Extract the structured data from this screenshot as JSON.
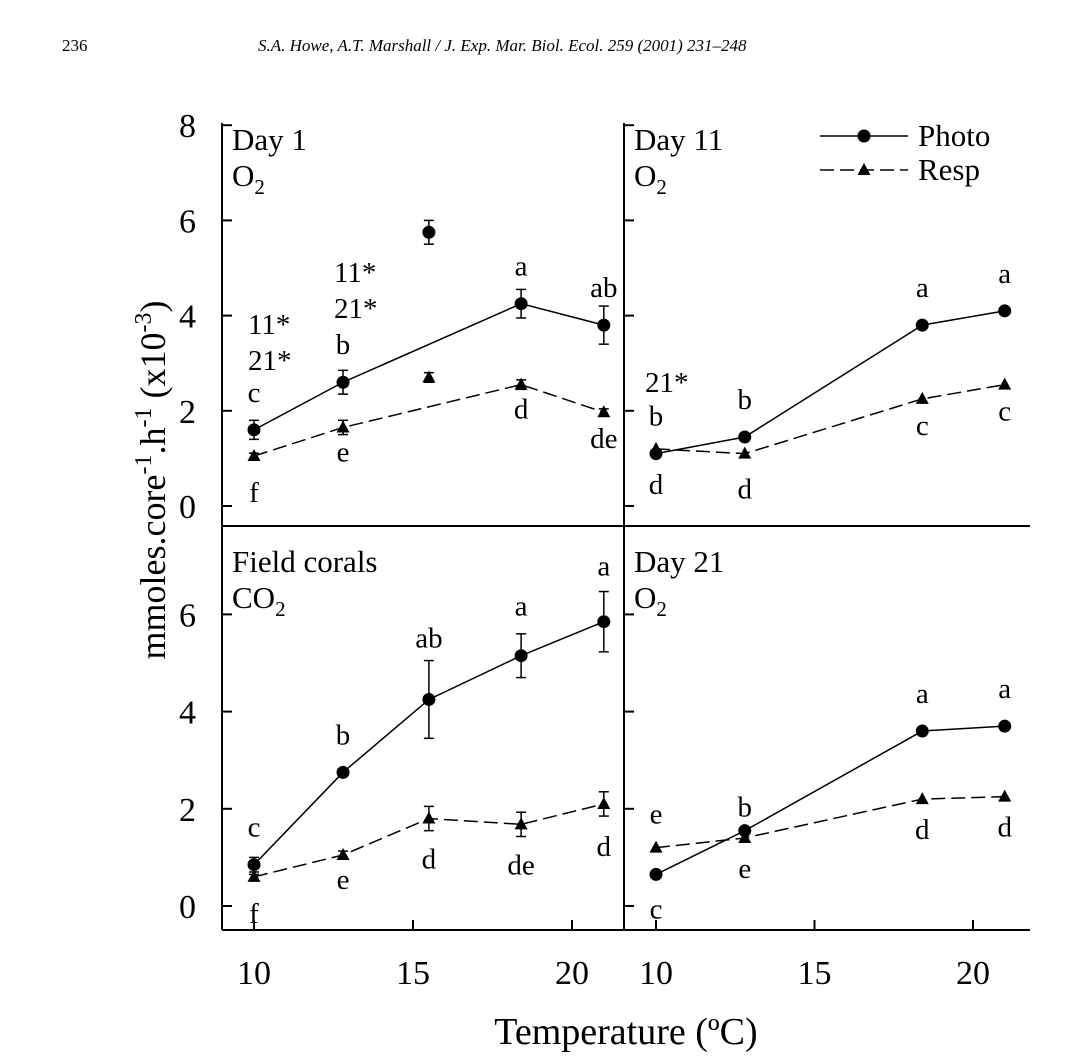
{
  "header": {
    "page_number": "236",
    "running_head": "S.A. Howe, A.T. Marshall / J. Exp. Mar. Biol. Ecol. 259 (2001) 231–248"
  },
  "chart_data": {
    "type": "line",
    "xlabel": "Temperature (ºC)",
    "ylabel_main": "mmoles.core",
    "ylabel_sup1": "-1",
    "ylabel_mid": ".h",
    "ylabel_sup2": "-1",
    "ylabel_end": " (x10",
    "ylabel_sup3": "-3",
    "ylabel_close": ")",
    "legend": [
      {
        "name": "Photo",
        "marker": "circle",
        "line": "solid"
      },
      {
        "name": "Resp",
        "marker": "triangle",
        "line": "dashed"
      }
    ],
    "xlim": [
      9,
      22
    ],
    "ylim": [
      -0.5,
      8
    ],
    "x_ticks": [
      "10",
      "15",
      "20"
    ],
    "y_ticks_top": [
      "0",
      "2",
      "4",
      "6",
      "8"
    ],
    "y_ticks_bottom": [
      "0",
      "2",
      "4",
      "6"
    ],
    "panels": [
      {
        "id": "day1",
        "title": "Day 1",
        "gas_base": "O",
        "gas_sub": "2",
        "series": [
          {
            "name": "Photo",
            "x": [
              10,
              12.8,
              18.4,
              21
            ],
            "y": [
              1.6,
              2.6,
              4.25,
              3.8
            ],
            "err": [
              0.2,
              0.25,
              0.3,
              0.4
            ],
            "labels": [
              "c",
              "b",
              "a",
              "ab"
            ]
          },
          {
            "name": "Resp",
            "x": [
              10,
              12.8,
              18.4,
              21
            ],
            "y": [
              1.05,
              1.65,
              2.55,
              1.97
            ],
            "err": [
              0.06,
              0.15,
              0.1,
              0.07
            ],
            "labels": [
              "f",
              "e",
              "d",
              "de"
            ]
          }
        ],
        "outliers": [
          {
            "series": "Photo",
            "x": 15.5,
            "y": 5.75,
            "err": 0.25
          },
          {
            "series": "Resp",
            "x": 15.5,
            "y": 2.7,
            "err": 0.1
          }
        ],
        "annotations": [
          "11*",
          "21*",
          "11*",
          "21*"
        ]
      },
      {
        "id": "day11",
        "title": "Day 11",
        "gas_base": "O",
        "gas_sub": "2",
        "series": [
          {
            "name": "Photo",
            "x": [
              10,
              12.8,
              18.4,
              21
            ],
            "y": [
              1.1,
              1.45,
              3.8,
              4.1
            ],
            "err": [
              0,
              0,
              0,
              0
            ],
            "labels": [
              "b",
              "b",
              "a",
              "a"
            ]
          },
          {
            "name": "Resp",
            "x": [
              10,
              12.8,
              18.4,
              21
            ],
            "y": [
              1.2,
              1.1,
              2.25,
              2.55
            ],
            "err": [
              0,
              0,
              0,
              0
            ],
            "labels": [
              "d",
              "d",
              "c",
              "c"
            ]
          }
        ],
        "annotations": [
          "21*"
        ]
      },
      {
        "id": "field",
        "title": "Field corals",
        "gas_base": "CO",
        "gas_sub": "2",
        "series": [
          {
            "name": "Photo",
            "x": [
              10,
              12.8,
              15.5,
              18.4,
              21
            ],
            "y": [
              0.85,
              2.75,
              4.25,
              5.15,
              5.85
            ],
            "err": [
              0.15,
              0.05,
              0.8,
              0.45,
              0.62
            ],
            "labels": [
              "c",
              "b",
              "ab",
              "a",
              "a"
            ]
          },
          {
            "name": "Resp",
            "x": [
              10,
              12.8,
              15.5,
              18.4,
              21
            ],
            "y": [
              0.6,
              1.05,
              1.8,
              1.68,
              2.1
            ],
            "err": [
              0.05,
              0.08,
              0.25,
              0.25,
              0.25
            ],
            "labels": [
              "f",
              "e",
              "d",
              "de",
              "d"
            ]
          }
        ]
      },
      {
        "id": "day21",
        "title": "Day 21",
        "gas_base": "O",
        "gas_sub": "2",
        "series": [
          {
            "name": "Photo",
            "x": [
              10,
              12.8,
              18.4,
              21
            ],
            "y": [
              0.65,
              1.55,
              3.6,
              3.7
            ],
            "err": [
              0,
              0,
              0,
              0
            ],
            "labels": [
              "c",
              "b",
              "a",
              "a"
            ]
          },
          {
            "name": "Resp",
            "x": [
              10,
              12.8,
              18.4,
              21
            ],
            "y": [
              1.2,
              1.4,
              2.2,
              2.25
            ],
            "err": [
              0,
              0,
              0,
              0
            ],
            "labels": [
              "e",
              "e",
              "d",
              "d"
            ]
          }
        ]
      }
    ]
  }
}
